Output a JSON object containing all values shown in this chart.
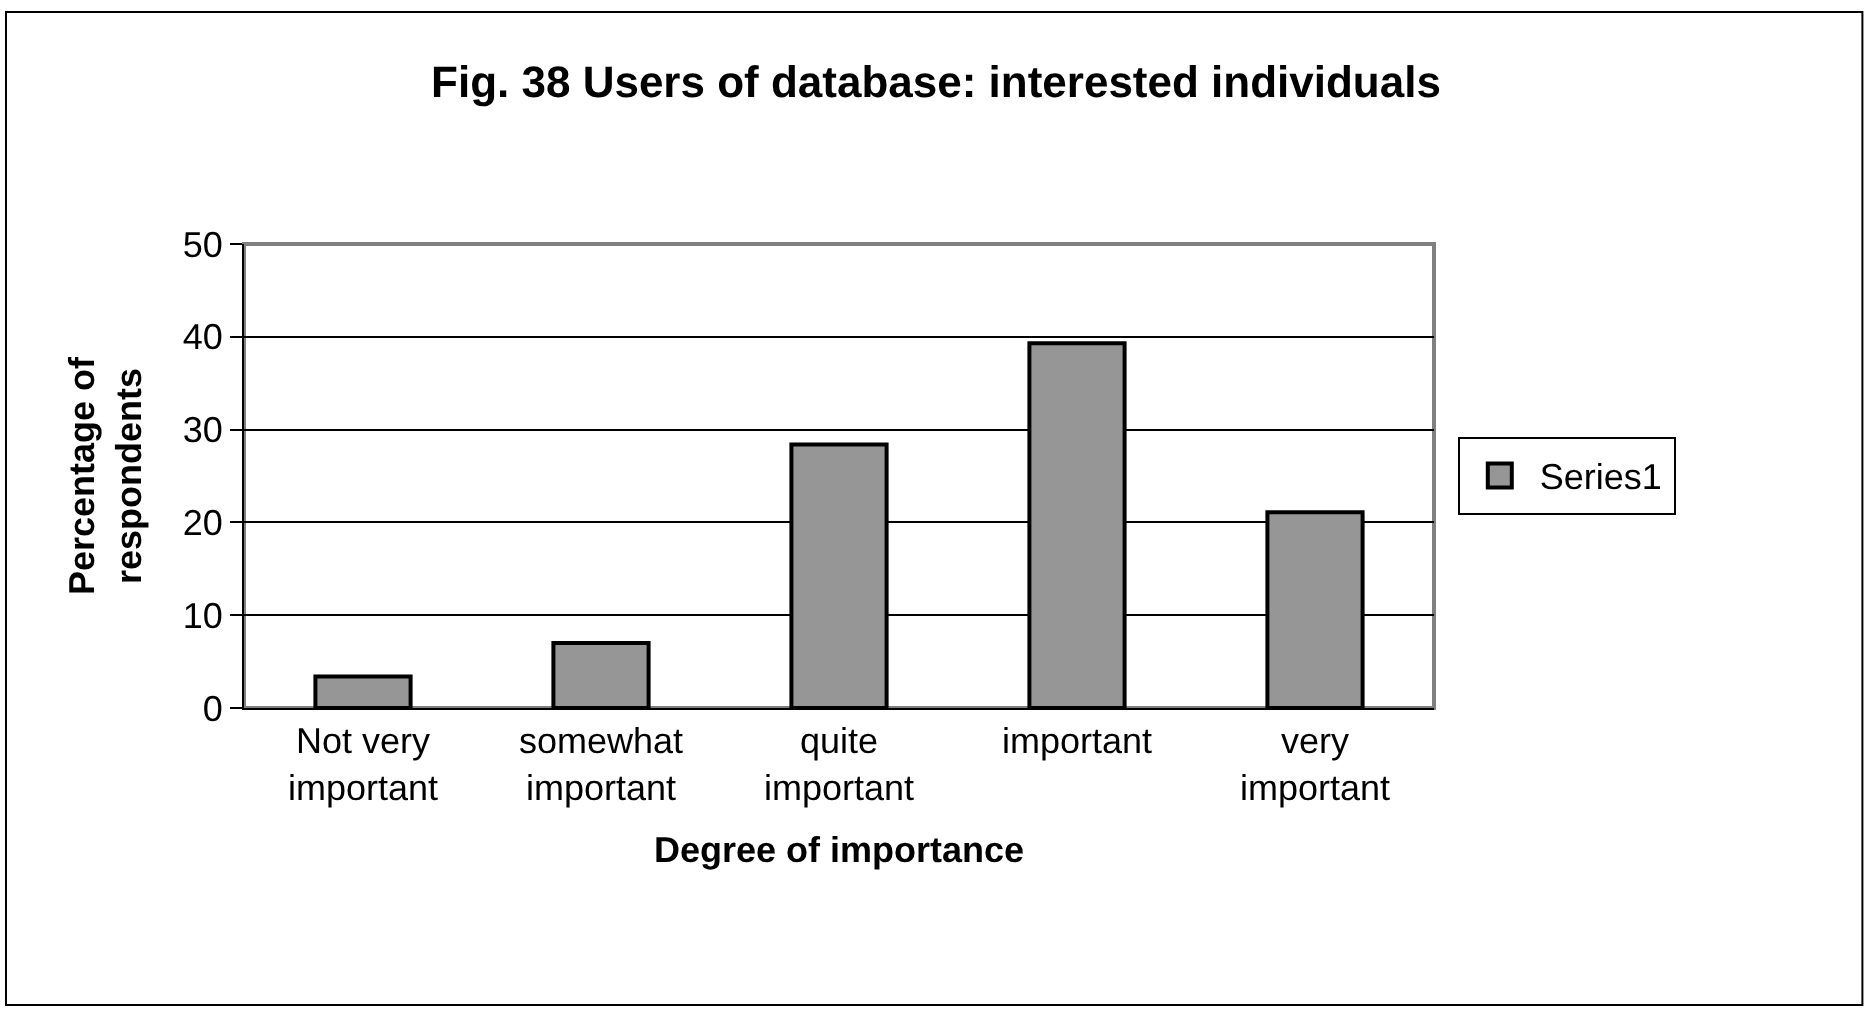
{
  "chart_data": {
    "type": "bar",
    "title": "Fig. 38 Users of database: interested individuals",
    "xlabel": "Degree of importance",
    "ylabel": "Percentage of respondents",
    "categories": [
      "Not very important",
      "somewhat important",
      "quite important",
      "important",
      "very important"
    ],
    "series": [
      {
        "name": "Series1",
        "color": "#969696",
        "values": [
          3.4,
          7.0,
          28.4,
          39.3,
          21.1
        ]
      }
    ],
    "ylim": [
      0,
      50
    ],
    "yticks": [
      0,
      10,
      20,
      30,
      40,
      50
    ],
    "grid": "y",
    "legend": "right"
  }
}
